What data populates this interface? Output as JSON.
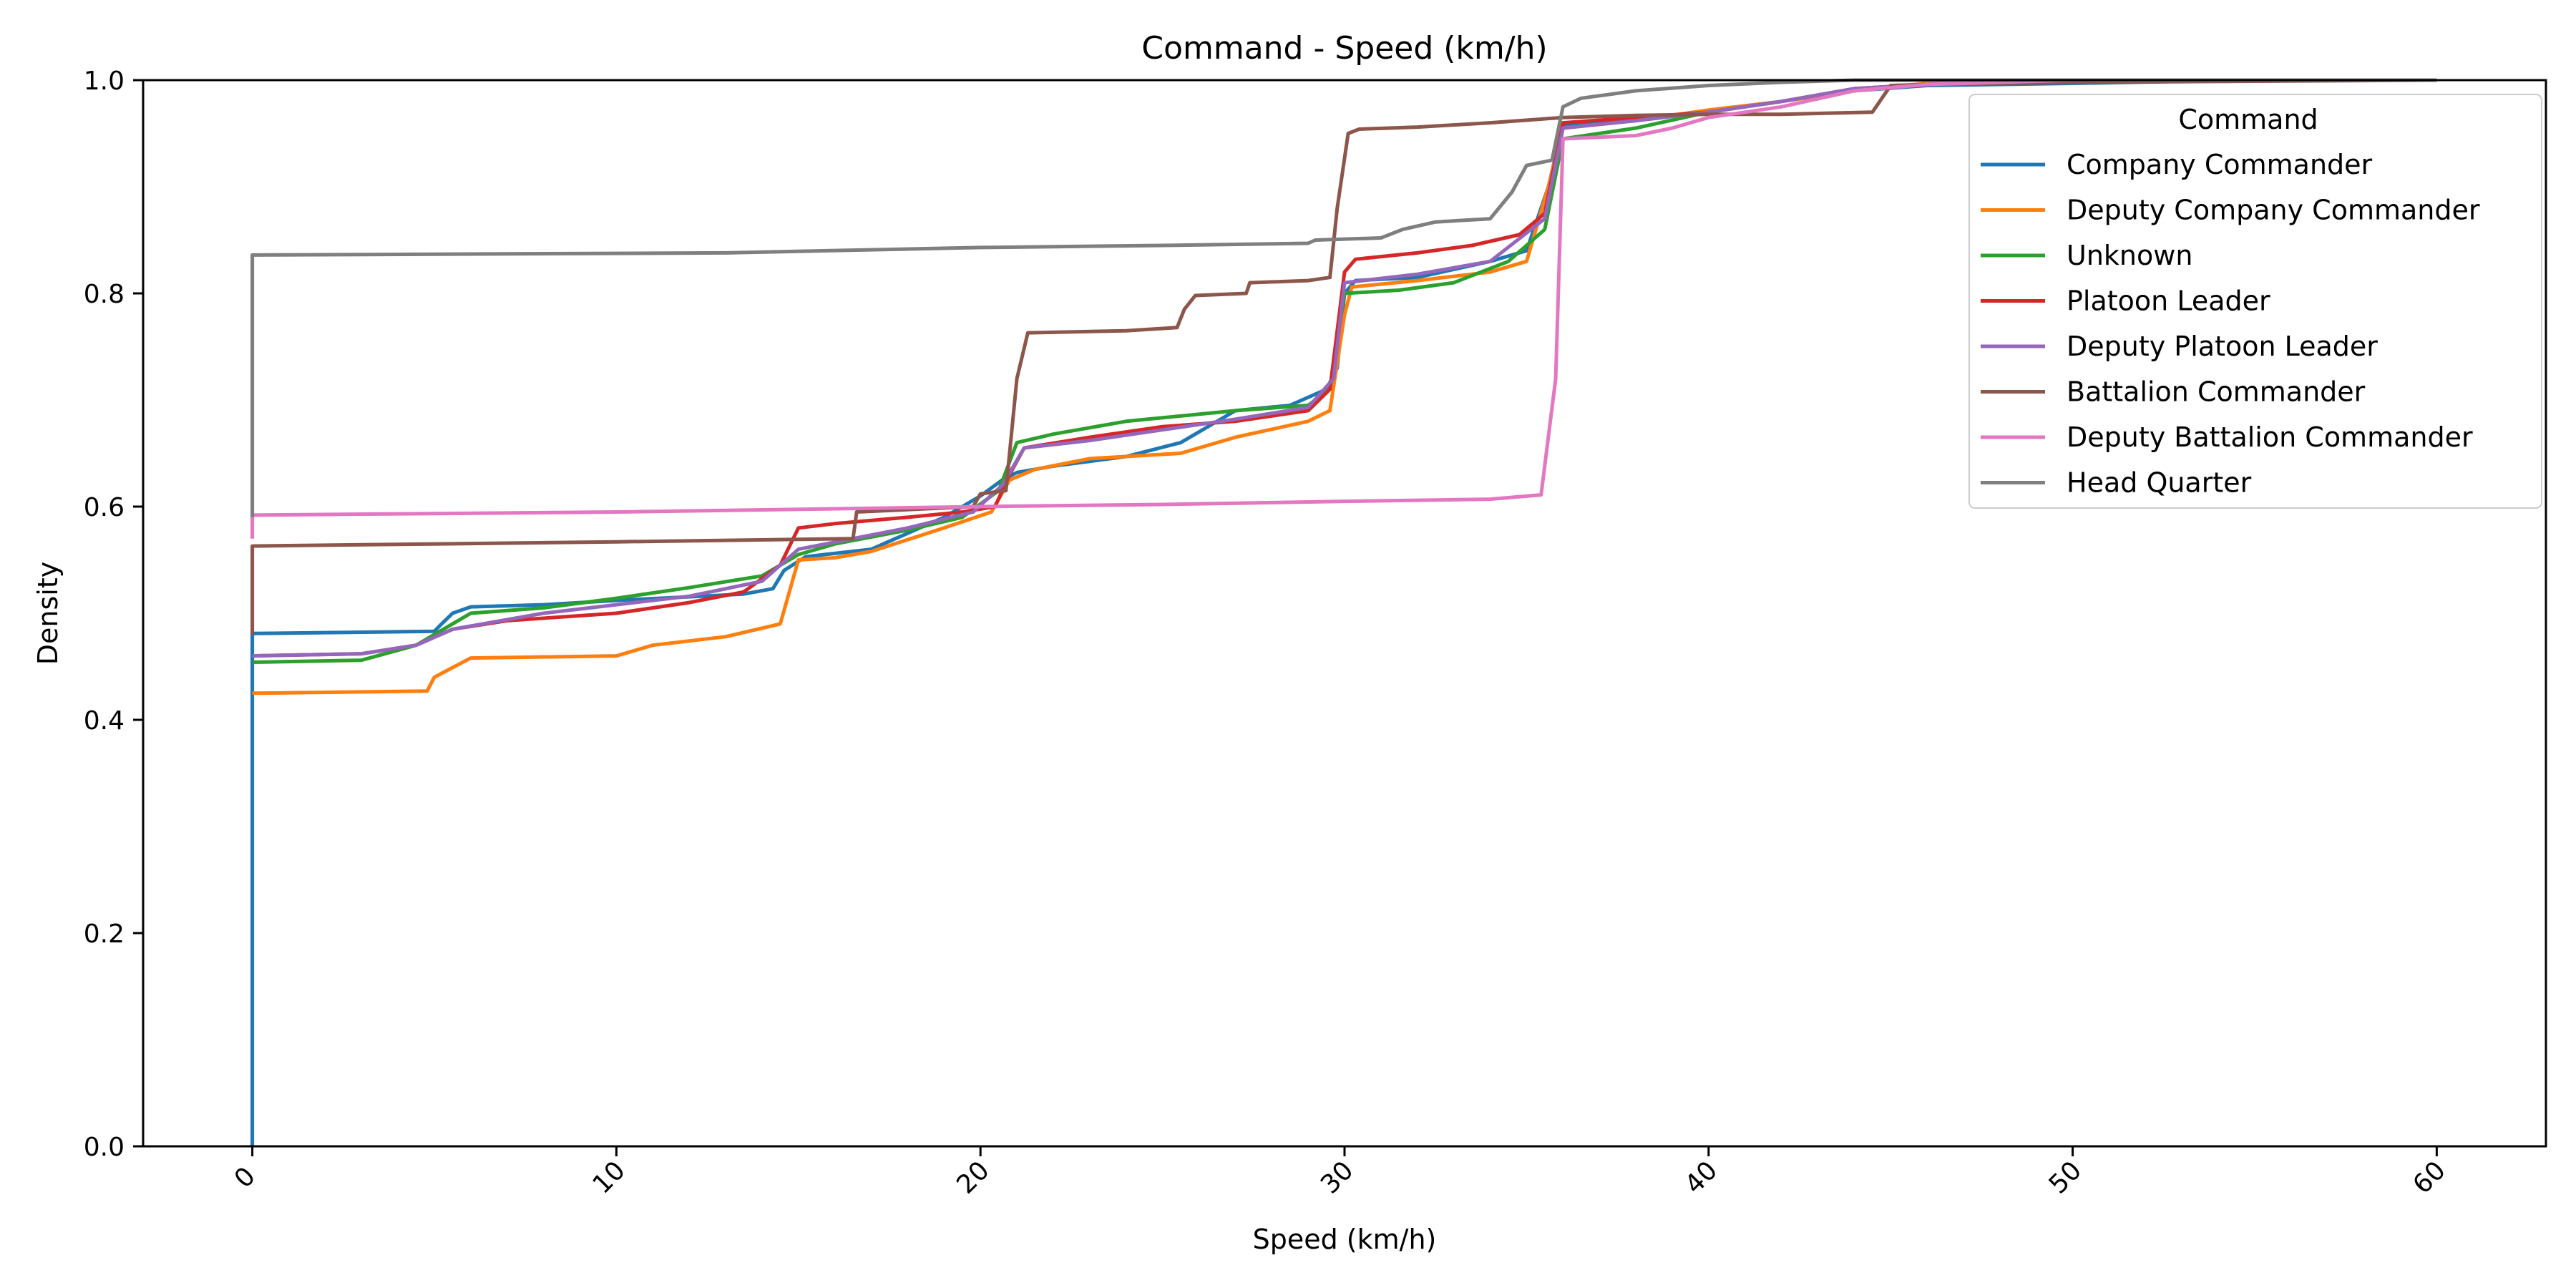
{
  "chart_data": {
    "type": "line",
    "title": "Command - Speed (km/h)",
    "xlabel": "Speed (km/h)",
    "ylabel": "Density",
    "xlim": [
      -3,
      63
    ],
    "ylim": [
      0.0,
      1.0
    ],
    "xticks": [
      0,
      10,
      20,
      30,
      40,
      50,
      60
    ],
    "yticks": [
      0.0,
      0.2,
      0.4,
      0.6,
      0.8,
      1.0
    ],
    "xtick_labels": [
      "0",
      "10",
      "20",
      "30",
      "40",
      "50",
      "60"
    ],
    "ytick_labels": [
      "0.0",
      "0.2",
      "0.4",
      "0.6",
      "0.8",
      "1.0"
    ],
    "grid": false,
    "legend": {
      "title": "Command",
      "position": "top-right"
    },
    "series": [
      {
        "name": "Company Commander",
        "color": "#1f77b4",
        "points": [
          [
            0,
            0.0
          ],
          [
            0,
            0.481
          ],
          [
            5,
            0.483
          ],
          [
            5.2,
            0.49
          ],
          [
            5.5,
            0.5
          ],
          [
            6,
            0.506
          ],
          [
            8,
            0.508
          ],
          [
            10,
            0.512
          ],
          [
            13.5,
            0.518
          ],
          [
            14.3,
            0.523
          ],
          [
            14.6,
            0.54
          ],
          [
            15.2,
            0.553
          ],
          [
            17,
            0.56
          ],
          [
            19,
            0.59
          ],
          [
            20,
            0.61
          ],
          [
            20.6,
            0.625
          ],
          [
            21,
            0.632
          ],
          [
            22,
            0.638
          ],
          [
            24,
            0.647
          ],
          [
            25.5,
            0.66
          ],
          [
            27,
            0.69
          ],
          [
            28.5,
            0.695
          ],
          [
            29.5,
            0.71
          ],
          [
            29.8,
            0.73
          ],
          [
            30,
            0.8
          ],
          [
            30.3,
            0.812
          ],
          [
            32,
            0.815
          ],
          [
            34,
            0.83
          ],
          [
            35,
            0.84
          ],
          [
            35.6,
            0.9
          ],
          [
            36,
            0.958
          ],
          [
            37,
            0.96
          ],
          [
            38,
            0.962
          ],
          [
            40,
            0.97
          ],
          [
            42,
            0.98
          ],
          [
            44,
            0.99
          ],
          [
            46,
            0.995
          ],
          [
            50,
            0.997
          ],
          [
            55,
            1.0
          ],
          [
            60,
            1.0
          ]
        ]
      },
      {
        "name": "Deputy Company Commander",
        "color": "#ff7f0e",
        "points": [
          [
            0,
            0.425
          ],
          [
            4.8,
            0.427
          ],
          [
            5,
            0.44
          ],
          [
            6,
            0.458
          ],
          [
            10,
            0.46
          ],
          [
            11,
            0.47
          ],
          [
            13,
            0.478
          ],
          [
            14.5,
            0.49
          ],
          [
            15,
            0.55
          ],
          [
            16,
            0.552
          ],
          [
            17,
            0.558
          ],
          [
            19,
            0.58
          ],
          [
            20.3,
            0.595
          ],
          [
            20.8,
            0.625
          ],
          [
            21.5,
            0.635
          ],
          [
            23,
            0.645
          ],
          [
            25.5,
            0.65
          ],
          [
            27,
            0.665
          ],
          [
            29,
            0.68
          ],
          [
            29.6,
            0.69
          ],
          [
            30,
            0.78
          ],
          [
            30.2,
            0.806
          ],
          [
            32,
            0.812
          ],
          [
            34,
            0.82
          ],
          [
            35,
            0.83
          ],
          [
            35.6,
            0.9
          ],
          [
            36,
            0.955
          ],
          [
            38,
            0.962
          ],
          [
            40,
            0.972
          ],
          [
            42,
            0.98
          ],
          [
            44,
            0.99
          ],
          [
            46,
            0.997
          ],
          [
            50,
            1.0
          ],
          [
            60,
            1.0
          ]
        ]
      },
      {
        "name": "Unknown",
        "color": "#2ca02c",
        "points": [
          [
            0,
            0.454
          ],
          [
            3,
            0.456
          ],
          [
            4.5,
            0.47
          ],
          [
            6,
            0.5
          ],
          [
            8,
            0.505
          ],
          [
            10,
            0.514
          ],
          [
            12,
            0.524
          ],
          [
            14,
            0.535
          ],
          [
            15,
            0.555
          ],
          [
            16,
            0.565
          ],
          [
            18,
            0.578
          ],
          [
            19.5,
            0.59
          ],
          [
            20.5,
            0.615
          ],
          [
            21,
            0.66
          ],
          [
            22,
            0.668
          ],
          [
            24,
            0.68
          ],
          [
            27,
            0.69
          ],
          [
            29,
            0.695
          ],
          [
            29.6,
            0.71
          ],
          [
            30,
            0.8
          ],
          [
            31.5,
            0.803
          ],
          [
            33,
            0.81
          ],
          [
            34.5,
            0.83
          ],
          [
            35.5,
            0.86
          ],
          [
            36,
            0.945
          ],
          [
            38,
            0.955
          ],
          [
            40,
            0.97
          ],
          [
            42,
            0.98
          ],
          [
            44,
            0.992
          ],
          [
            46,
            0.996
          ],
          [
            50,
            1.0
          ],
          [
            60,
            1.0
          ]
        ]
      },
      {
        "name": "Platoon Leader",
        "color": "#d62728",
        "points": [
          [
            0,
            0.46
          ],
          [
            3,
            0.462
          ],
          [
            4.5,
            0.47
          ],
          [
            5.5,
            0.485
          ],
          [
            7,
            0.493
          ],
          [
            10,
            0.5
          ],
          [
            12,
            0.51
          ],
          [
            13.5,
            0.52
          ],
          [
            14.5,
            0.545
          ],
          [
            15,
            0.58
          ],
          [
            16,
            0.584
          ],
          [
            18,
            0.59
          ],
          [
            19.5,
            0.595
          ],
          [
            20.4,
            0.6
          ],
          [
            20.8,
            0.63
          ],
          [
            21.2,
            0.655
          ],
          [
            23,
            0.665
          ],
          [
            25,
            0.675
          ],
          [
            27,
            0.68
          ],
          [
            29,
            0.69
          ],
          [
            29.6,
            0.71
          ],
          [
            30,
            0.82
          ],
          [
            30.3,
            0.832
          ],
          [
            32,
            0.838
          ],
          [
            33.5,
            0.845
          ],
          [
            34.8,
            0.855
          ],
          [
            35.5,
            0.875
          ],
          [
            36,
            0.96
          ],
          [
            38,
            0.965
          ],
          [
            40,
            0.97
          ],
          [
            42,
            0.98
          ],
          [
            44,
            0.992
          ],
          [
            46,
            0.996
          ],
          [
            50,
            1.0
          ],
          [
            60,
            1.0
          ]
        ]
      },
      {
        "name": "Deputy Platoon Leader",
        "color": "#9467bd",
        "points": [
          [
            0,
            0.46
          ],
          [
            3,
            0.462
          ],
          [
            4.5,
            0.47
          ],
          [
            5.5,
            0.485
          ],
          [
            8,
            0.5
          ],
          [
            10,
            0.508
          ],
          [
            12,
            0.516
          ],
          [
            14,
            0.53
          ],
          [
            15,
            0.56
          ],
          [
            16.5,
            0.57
          ],
          [
            18,
            0.58
          ],
          [
            19.8,
            0.595
          ],
          [
            20.6,
            0.62
          ],
          [
            21.2,
            0.655
          ],
          [
            23,
            0.662
          ],
          [
            25,
            0.672
          ],
          [
            27,
            0.682
          ],
          [
            29,
            0.693
          ],
          [
            29.7,
            0.72
          ],
          [
            30,
            0.81
          ],
          [
            32,
            0.818
          ],
          [
            34,
            0.83
          ],
          [
            35.5,
            0.87
          ],
          [
            36,
            0.955
          ],
          [
            38,
            0.962
          ],
          [
            40,
            0.97
          ],
          [
            42,
            0.98
          ],
          [
            44,
            0.992
          ],
          [
            46,
            0.996
          ],
          [
            50,
            1.0
          ],
          [
            60,
            1.0
          ]
        ]
      },
      {
        "name": "Battalion Commander",
        "color": "#8c564b",
        "points": [
          [
            0,
            0.48
          ],
          [
            0,
            0.563
          ],
          [
            10,
            0.567
          ],
          [
            16.5,
            0.57
          ],
          [
            16.6,
            0.595
          ],
          [
            19.8,
            0.6
          ],
          [
            20,
            0.612
          ],
          [
            20.7,
            0.615
          ],
          [
            21,
            0.72
          ],
          [
            21.3,
            0.763
          ],
          [
            24,
            0.765
          ],
          [
            25.4,
            0.768
          ],
          [
            25.6,
            0.785
          ],
          [
            25.9,
            0.798
          ],
          [
            27.3,
            0.8
          ],
          [
            27.4,
            0.81
          ],
          [
            29,
            0.812
          ],
          [
            29.6,
            0.815
          ],
          [
            29.8,
            0.88
          ],
          [
            30.1,
            0.95
          ],
          [
            30.4,
            0.954
          ],
          [
            32,
            0.956
          ],
          [
            34,
            0.96
          ],
          [
            36,
            0.965
          ],
          [
            38,
            0.967
          ],
          [
            40,
            0.968
          ],
          [
            42,
            0.968
          ],
          [
            44.5,
            0.97
          ],
          [
            45,
            0.995
          ],
          [
            46,
            0.996
          ],
          [
            50,
            0.998
          ],
          [
            60,
            1.0
          ]
        ]
      },
      {
        "name": "Deputy Battalion Commander",
        "color": "#e377c2",
        "points": [
          [
            0,
            0.57
          ],
          [
            0,
            0.592
          ],
          [
            10,
            0.595
          ],
          [
            20,
            0.6
          ],
          [
            25,
            0.602
          ],
          [
            30,
            0.605
          ],
          [
            34,
            0.607
          ],
          [
            35.4,
            0.611
          ],
          [
            35.8,
            0.72
          ],
          [
            36,
            0.945
          ],
          [
            38,
            0.948
          ],
          [
            39,
            0.955
          ],
          [
            40,
            0.965
          ],
          [
            42,
            0.975
          ],
          [
            44,
            0.99
          ],
          [
            46,
            0.996
          ],
          [
            50,
            1.0
          ],
          [
            60,
            1.0
          ]
        ]
      },
      {
        "name": "Head Quarter",
        "color": "#7f7f7f",
        "points": [
          [
            0,
            0.59
          ],
          [
            0,
            0.836
          ],
          [
            13,
            0.838
          ],
          [
            20,
            0.843
          ],
          [
            25,
            0.845
          ],
          [
            29,
            0.847
          ],
          [
            29.2,
            0.85
          ],
          [
            31,
            0.852
          ],
          [
            31.6,
            0.86
          ],
          [
            32.5,
            0.867
          ],
          [
            34,
            0.87
          ],
          [
            34.6,
            0.895
          ],
          [
            35,
            0.92
          ],
          [
            35.7,
            0.925
          ],
          [
            36,
            0.975
          ],
          [
            36.5,
            0.983
          ],
          [
            38,
            0.99
          ],
          [
            40,
            0.995
          ],
          [
            42,
            0.998
          ],
          [
            44,
            1.0
          ],
          [
            60,
            1.0
          ]
        ]
      }
    ]
  }
}
